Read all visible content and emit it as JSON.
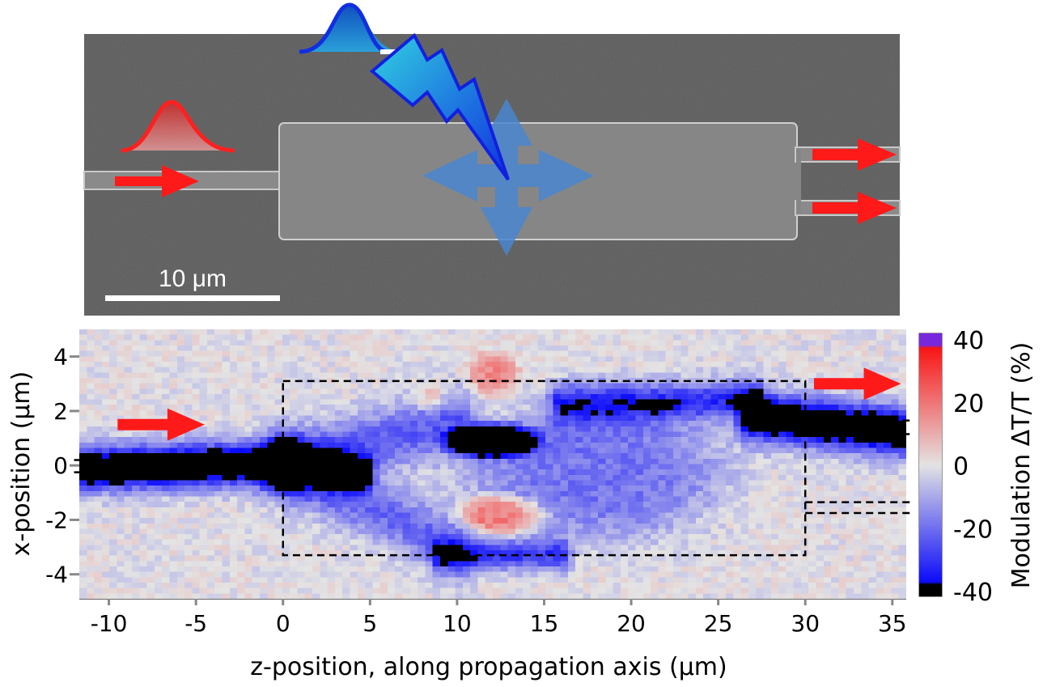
{
  "sem_image": {
    "scale_bar_label": "10 μm",
    "colors": {
      "background": "#5b5b5b",
      "structure": "#8c8c8c",
      "probe_pulse": "#ff2020",
      "pump_pulse": "#1060d0",
      "arrows": "#ff1a1a",
      "cross": "#4a86d0"
    }
  },
  "chart_data": {
    "type": "heatmap",
    "xlabel": "z-position, along propagation axis (μm)",
    "ylabel": "x-position (μm)",
    "colorbar_label": "Modulation ΔT/T (%)",
    "xlim": [
      -11.7,
      35.8
    ],
    "ylim": [
      -4.9,
      5.0
    ],
    "xticks": [
      -10,
      -5,
      0,
      5,
      10,
      15,
      20,
      25,
      30,
      35
    ],
    "xtick_labels": [
      "-10",
      "-5",
      "0",
      "5",
      "10",
      "15",
      "20",
      "25",
      "30",
      "35"
    ],
    "yticks": [
      4,
      2,
      0,
      -2,
      -4
    ],
    "ytick_labels": [
      "4",
      "2",
      "0",
      "-2",
      "-4"
    ],
    "clim": [
      -40,
      40
    ],
    "cticks": [
      40,
      20,
      0,
      -20,
      -40
    ],
    "ctick_labels": [
      "40",
      "20",
      "0",
      "-20",
      "-40"
    ],
    "features": [
      {
        "kind": "segment",
        "from": [
          -12,
          -0.15
        ],
        "to": [
          0.5,
          0.1
        ],
        "sigma": 0.55,
        "value": -58
      },
      {
        "kind": "segment",
        "from": [
          0.5,
          0.0
        ],
        "to": [
          4.5,
          -0.3
        ],
        "sigma": 0.45,
        "value": -48
      },
      {
        "kind": "segment",
        "from": [
          0,
          0.1
        ],
        "to": [
          10,
          1.6
        ],
        "sigma": 0.8,
        "value": -24
      },
      {
        "kind": "segment",
        "from": [
          0,
          -0.1
        ],
        "to": [
          10,
          -3.0
        ],
        "sigma": 0.8,
        "value": -22
      },
      {
        "kind": "blob",
        "center": [
          18,
          -0.2
        ],
        "spread": [
          7.5,
          2.6
        ],
        "value": -20
      },
      {
        "kind": "segment",
        "from": [
          9,
          -3.3
        ],
        "to": [
          16,
          -3.3
        ],
        "sigma": 0.4,
        "value": -30
      },
      {
        "kind": "segment",
        "from": [
          16,
          2.3
        ],
        "to": [
          27,
          2.4
        ],
        "sigma": 0.5,
        "value": -32
      },
      {
        "kind": "blob",
        "center": [
          12,
          0.9
        ],
        "spread": [
          2.6,
          0.6
        ],
        "value": -62
      },
      {
        "kind": "blob",
        "center": [
          21.5,
          2.2
        ],
        "spread": [
          1.0,
          0.22
        ],
        "value": -45
      },
      {
        "kind": "segment",
        "from": [
          27,
          1.8
        ],
        "to": [
          36,
          1.2
        ],
        "sigma": 0.6,
        "value": -58
      },
      {
        "kind": "blob",
        "center": [
          12,
          3.4
        ],
        "spread": [
          1.5,
          0.8
        ],
        "value": 18
      },
      {
        "kind": "blob",
        "center": [
          12.5,
          -1.8
        ],
        "spread": [
          2.5,
          0.7
        ],
        "value": 28
      },
      {
        "kind": "blob",
        "center": [
          8.5,
          2.5
        ],
        "spread": [
          0.8,
          0.6
        ],
        "value": 12
      }
    ],
    "outline": {
      "input_waveguide": {
        "z": [
          -12,
          0
        ],
        "x": [
          -0.25,
          0.2
        ]
      },
      "mmi_box": {
        "z": [
          0,
          30
        ],
        "x": [
          -3.3,
          3.1
        ]
      },
      "output_upper": {
        "z": [
          30,
          36
        ],
        "x": [
          1.15,
          1.65
        ]
      },
      "output_lower": {
        "z": [
          30,
          36
        ],
        "x": [
          -1.75,
          -1.35
        ]
      }
    },
    "arrows": [
      {
        "from": [
          -9.5,
          1.5
        ],
        "to": [
          -4.5,
          1.5
        ]
      },
      {
        "from": [
          30.5,
          3.0
        ],
        "to": [
          35.5,
          3.0
        ]
      }
    ]
  }
}
